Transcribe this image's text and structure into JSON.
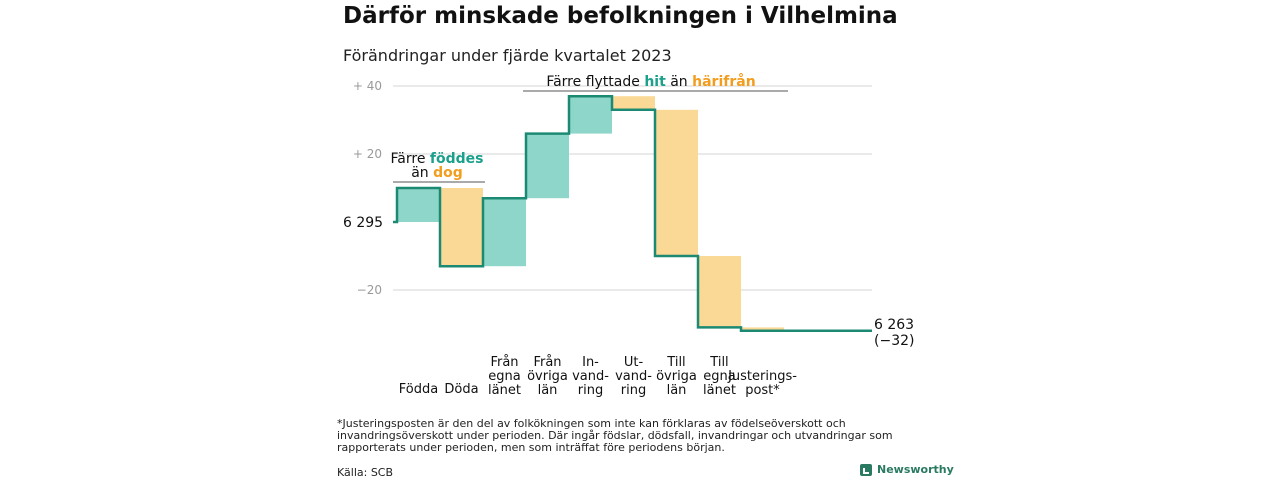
{
  "title": "Därför minskade befolkningen i Vilhelmina",
  "subtitle": "Förändringar under fjärde kvartalet 2023",
  "footnote": "*Justeringsposten är den del av folkökningen som inte kan förklaras av födelseöverskott och invandringsöverskott under perioden. Där ingår födslar, dödsfall, invandringar och utvandringar som rapporterats under perioden, men som inträffat före periodens början.",
  "source": "Källa: SCB",
  "brand": "Newsworthy",
  "colors": {
    "increase": "#8fd6ca",
    "decrease": "#fad896",
    "line": "#1c8a73",
    "teal_text": "#1aa08c",
    "orange_text": "#f29d1e",
    "grid": "#d6d6d6",
    "tick": "#9a9a9a"
  },
  "annotations": {
    "births": {
      "line1": "Färre ",
      "line1_em": "föddes",
      "line2": "än ",
      "line2_em": "dog"
    },
    "migration": {
      "text": "Färre flyttade ",
      "em1": "hit",
      "mid": " än ",
      "em2": "härifrån"
    }
  },
  "chart_data": {
    "type": "waterfall",
    "start": {
      "value": 6295,
      "label": "6 295"
    },
    "end": {
      "value": 6263,
      "label": "6 263",
      "change_label": "(−32)"
    },
    "y_ticks": [
      {
        "value": 40,
        "label": "+ 40"
      },
      {
        "value": 20,
        "label": "+ 20"
      },
      {
        "value": -20,
        "label": "−20"
      }
    ],
    "ylim": [
      -32,
      42
    ],
    "steps": [
      {
        "category": [
          "Födda"
        ],
        "value": 10
      },
      {
        "category": [
          "Döda"
        ],
        "value": -23
      },
      {
        "category": [
          "Från",
          "egna",
          "länet"
        ],
        "value": 20
      },
      {
        "category": [
          "Från",
          "övriga",
          "län"
        ],
        "value": 19
      },
      {
        "category": [
          "In-",
          "vand-",
          "ring"
        ],
        "value": 11
      },
      {
        "category": [
          "Ut-",
          "vand-",
          "ring"
        ],
        "value": -4
      },
      {
        "category": [
          "Till",
          "övriga",
          "län"
        ],
        "value": -43
      },
      {
        "category": [
          "Till",
          "egna",
          "länet"
        ],
        "value": -21
      },
      {
        "category": [
          "Justerings-",
          "post*"
        ],
        "value": -1
      }
    ]
  }
}
